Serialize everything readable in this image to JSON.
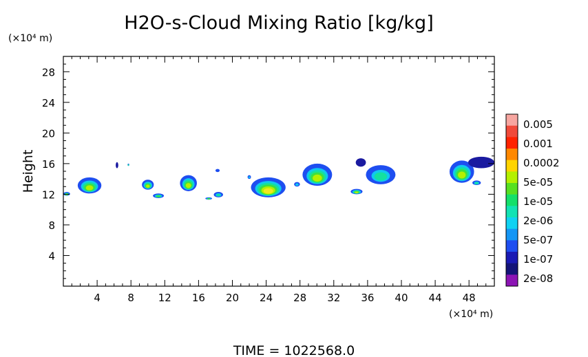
{
  "chart_data": {
    "type": "heatmap",
    "title": "H2O-s-Cloud Mixing Ratio [kg/kg]",
    "xlabel": "",
    "ylabel": "Height",
    "x_unit_label": "(×10⁴ m)",
    "y_unit_label": "(×10⁴ m)",
    "xlim": [
      0,
      51
    ],
    "ylim": [
      0,
      30
    ],
    "x_ticks": [
      4,
      8,
      12,
      16,
      20,
      24,
      28,
      32,
      36,
      40,
      44,
      48
    ],
    "y_ticks": [
      4,
      8,
      12,
      16,
      20,
      24,
      28
    ],
    "colorbar": {
      "labels": [
        "0.005",
        "0.001",
        "0.0002",
        "5e-05",
        "1e-05",
        "2e-06",
        "5e-07",
        "1e-07",
        "2e-08"
      ],
      "colors": [
        "#f7a6a0",
        "#f04a3a",
        "#ff2200",
        "#ff8800",
        "#ffd400",
        "#b4f000",
        "#57e021",
        "#14e06a",
        "#12e3b4",
        "#10d2f2",
        "#1496f5",
        "#1e4ef0",
        "#1a1ab4",
        "#141478",
        "#8c14b4"
      ]
    },
    "time_label": "TIME = 1022568.0",
    "cells": [
      {
        "x_range": [
          0.0,
          0.8
        ],
        "z_range": [
          11.8,
          12.3
        ],
        "max_value": "5e-05"
      },
      {
        "x_range": [
          1.7,
          4.5
        ],
        "z_range": [
          12.1,
          14.2
        ],
        "max_value": "5e-05"
      },
      {
        "x_range": [
          6.2,
          6.5
        ],
        "z_range": [
          15.4,
          16.2
        ],
        "max_value": "2e-08"
      },
      {
        "x_range": [
          7.6,
          7.8
        ],
        "z_range": [
          15.7,
          16.0
        ],
        "max_value": "2e-06"
      },
      {
        "x_range": [
          9.3,
          10.7
        ],
        "z_range": [
          12.6,
          13.9
        ],
        "max_value": "5e-05"
      },
      {
        "x_range": [
          10.6,
          11.9
        ],
        "z_range": [
          11.5,
          12.1
        ],
        "max_value": "1e-05"
      },
      {
        "x_range": [
          13.8,
          15.8
        ],
        "z_range": [
          12.4,
          14.5
        ],
        "max_value": "5e-05"
      },
      {
        "x_range": [
          16.8,
          17.6
        ],
        "z_range": [
          11.3,
          11.6
        ],
        "max_value": "1e-05"
      },
      {
        "x_range": [
          17.8,
          18.9
        ],
        "z_range": [
          11.6,
          12.3
        ],
        "max_value": "2e-06"
      },
      {
        "x_range": [
          18.0,
          18.5
        ],
        "z_range": [
          14.9,
          15.3
        ],
        "max_value": "1e-07"
      },
      {
        "x_range": [
          21.8,
          22.2
        ],
        "z_range": [
          14.0,
          14.5
        ],
        "max_value": "5e-07"
      },
      {
        "x_range": [
          22.2,
          26.3
        ],
        "z_range": [
          11.6,
          14.2
        ],
        "max_value": "0.0002"
      },
      {
        "x_range": [
          27.3,
          28.0
        ],
        "z_range": [
          13.0,
          13.6
        ],
        "max_value": "5e-07"
      },
      {
        "x_range": [
          28.3,
          31.8
        ],
        "z_range": [
          13.1,
          16.0
        ],
        "max_value": "5e-05"
      },
      {
        "x_range": [
          34.6,
          35.8
        ],
        "z_range": [
          15.6,
          16.7
        ],
        "max_value": "2e-08"
      },
      {
        "x_range": [
          34.0,
          35.4
        ],
        "z_range": [
          12.0,
          12.7
        ],
        "max_value": "5e-05"
      },
      {
        "x_range": [
          35.8,
          39.3
        ],
        "z_range": [
          13.3,
          15.8
        ],
        "max_value": "5e-06"
      },
      {
        "x_range": [
          45.7,
          48.6
        ],
        "z_range": [
          13.5,
          16.4
        ],
        "max_value": "5e-05"
      },
      {
        "x_range": [
          47.9,
          51.0
        ],
        "z_range": [
          15.4,
          16.9
        ],
        "max_value": "2e-08"
      },
      {
        "x_range": [
          48.4,
          49.4
        ],
        "z_range": [
          13.2,
          13.8
        ],
        "max_value": "2e-06"
      }
    ]
  }
}
